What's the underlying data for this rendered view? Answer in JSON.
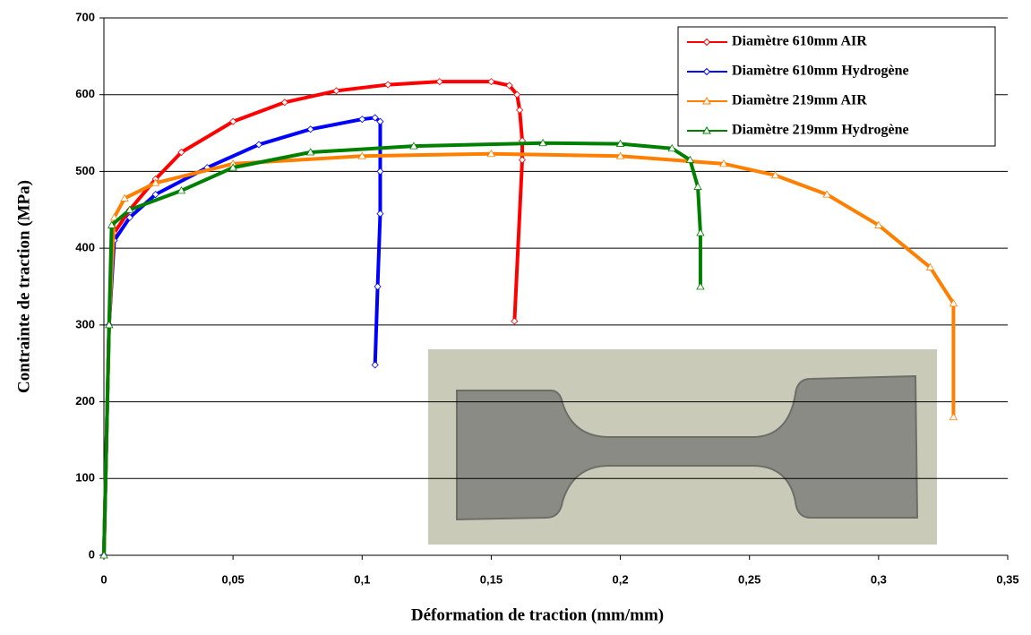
{
  "chart_data": {
    "type": "line",
    "x_label": "Déformation de traction (mm/mm)",
    "y_label": "Contrainte de traction (MPa)",
    "xlim": [
      0,
      0.35
    ],
    "ylim": [
      0,
      700
    ],
    "xticks": [
      0,
      {
        "value": 0.05,
        "label": "0,05"
      },
      {
        "value": 0.1,
        "label": "0,1"
      },
      {
        "value": 0.15,
        "label": "0,15"
      },
      {
        "value": 0.2,
        "label": "0,2"
      },
      {
        "value": 0.25,
        "label": "0,25"
      },
      {
        "value": 0.3,
        "label": "0,3"
      },
      {
        "value": 0.35,
        "label": "0,35"
      }
    ],
    "yticks": [
      0,
      100,
      200,
      300,
      400,
      500,
      600,
      700
    ],
    "grid": true,
    "legend": "upper right",
    "series": [
      {
        "name": "Diamètre 610mm AIR",
        "color": "#ff0000",
        "marker": "diamond",
        "x": [
          0,
          0.002,
          0.004,
          0.01,
          0.02,
          0.03,
          0.05,
          0.07,
          0.09,
          0.11,
          0.13,
          0.15,
          0.157,
          0.16,
          0.161,
          0.162,
          0.162,
          0.159
        ],
        "y": [
          0,
          300,
          420,
          450,
          490,
          525,
          565,
          590,
          605,
          613,
          617,
          617,
          612,
          600,
          580,
          540,
          515,
          305
        ]
      },
      {
        "name": "Diamètre 610mm Hydrogène",
        "color": "#0000ff",
        "marker": "diamond",
        "x": [
          0,
          0.002,
          0.004,
          0.01,
          0.02,
          0.04,
          0.06,
          0.08,
          0.1,
          0.105,
          0.107,
          0.107,
          0.107,
          0.106,
          0.105
        ],
        "y": [
          0,
          300,
          410,
          440,
          470,
          505,
          535,
          555,
          568,
          570,
          565,
          500,
          445,
          350,
          248
        ]
      },
      {
        "name": "Diamètre 219mm AIR",
        "color": "#ff8000",
        "marker": "triangle",
        "x": [
          0,
          0.002,
          0.004,
          0.008,
          0.02,
          0.05,
          0.1,
          0.15,
          0.2,
          0.24,
          0.26,
          0.28,
          0.3,
          0.32,
          0.329,
          0.329
        ],
        "y": [
          0,
          300,
          440,
          465,
          485,
          510,
          520,
          523,
          520,
          510,
          495,
          470,
          430,
          375,
          328,
          180
        ]
      },
      {
        "name": "Diamètre 219mm Hydrogène",
        "color": "#008000",
        "marker": "triangle",
        "x": [
          0,
          0.002,
          0.003,
          0.01,
          0.03,
          0.05,
          0.08,
          0.12,
          0.17,
          0.2,
          0.22,
          0.227,
          0.23,
          0.231,
          0.231
        ],
        "y": [
          0,
          300,
          430,
          450,
          475,
          505,
          525,
          533,
          537,
          536,
          530,
          515,
          480,
          420,
          350
        ]
      }
    ]
  }
}
